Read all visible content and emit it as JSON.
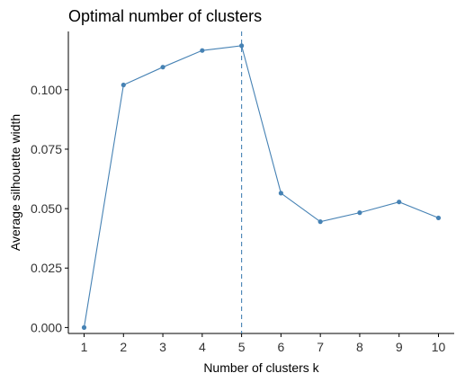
{
  "chart_data": {
    "type": "line",
    "title": "Optimal number of clusters",
    "xlabel": "Number of clusters k",
    "ylabel": "Average silhouette width",
    "x": [
      1,
      2,
      3,
      4,
      5,
      6,
      7,
      8,
      9,
      10
    ],
    "x_tick_labels": [
      "1",
      "2",
      "3",
      "4",
      "5",
      "6",
      "7",
      "8",
      "9",
      "10"
    ],
    "series": [
      {
        "values": [
          0.0,
          0.102,
          0.1095,
          0.1165,
          0.1185,
          0.0565,
          0.0445,
          0.0483,
          0.0528,
          0.0461
        ]
      }
    ],
    "y_ticks": [
      0.0,
      0.025,
      0.05,
      0.075,
      0.1
    ],
    "y_tick_labels": [
      "0.000",
      "0.025",
      "0.050",
      "0.075",
      "0.100"
    ],
    "ylim": [
      -0.0025,
      0.1245
    ],
    "reference_line": {
      "axis": "x",
      "value": 5,
      "style": "dashed"
    },
    "grid": false,
    "colors": {
      "series": "#4682B4",
      "reference": "#4682B4",
      "axis": "#000000",
      "background": "#FFFFFF"
    }
  }
}
